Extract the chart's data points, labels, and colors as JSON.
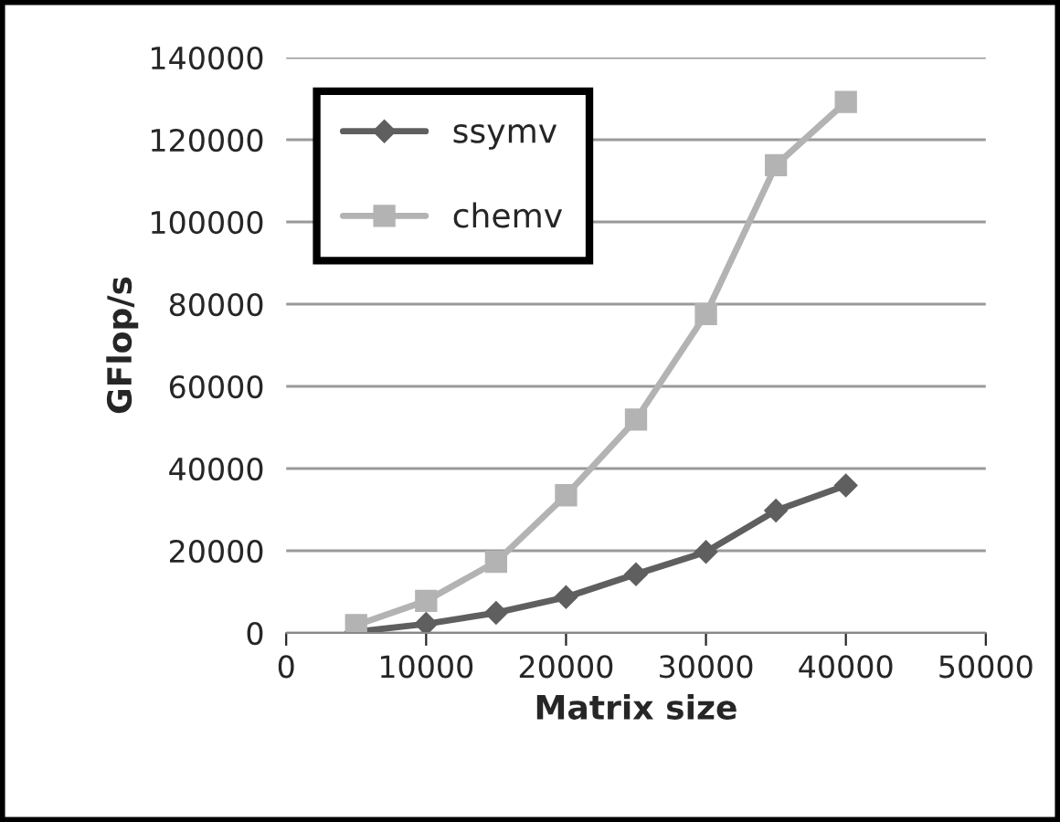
{
  "chart_data": {
    "type": "line",
    "xlabel": "Matrix size",
    "ylabel": "GFlop/s",
    "x": [
      5000,
      10000,
      15000,
      20000,
      25000,
      30000,
      35000,
      40000
    ],
    "series": [
      {
        "name": "ssymv",
        "color": "#5f5f5f",
        "marker": "diamond",
        "values": [
          300,
          2200,
          4900,
          8700,
          14300,
          19700,
          29800,
          35900
        ]
      },
      {
        "name": "chemv",
        "color": "#b3b3b3",
        "marker": "square",
        "values": [
          1900,
          7800,
          17300,
          33500,
          51900,
          77600,
          113800,
          129200
        ]
      }
    ],
    "xlim": [
      0,
      50000
    ],
    "xticks": [
      0,
      10000,
      20000,
      30000,
      40000,
      50000
    ],
    "ylim": [
      0,
      140000
    ],
    "yticks": [
      0,
      20000,
      40000,
      60000,
      80000,
      100000,
      120000,
      140000
    ],
    "grid": "y",
    "legend": "top left"
  }
}
